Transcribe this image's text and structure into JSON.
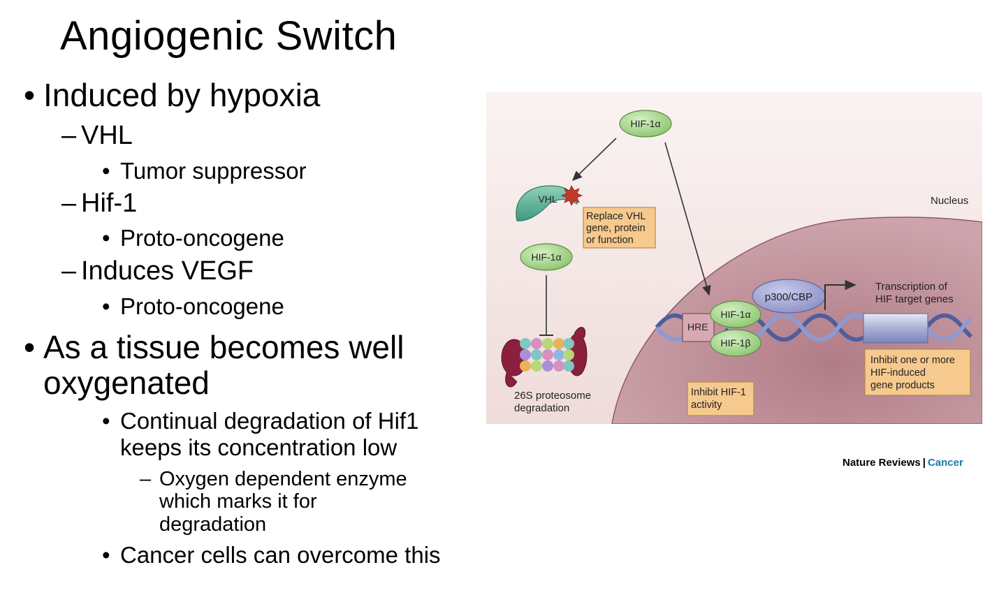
{
  "slide": {
    "title": "Angiogenic Switch"
  },
  "bullets": {
    "b1": "Induced by hypoxia",
    "b1_sub1": "VHL",
    "b1_sub1_item": "Tumor suppressor",
    "b1_sub2": "Hif-1",
    "b1_sub2_item": "Proto-oncogene",
    "b1_sub3": "Induces VEGF",
    "b1_sub3_item": "Proto-oncogene",
    "b2_line1": "As a tissue becomes well",
    "b2_line2": "oxygenated",
    "b2_sub1_line1": "Continual degradation of Hif1",
    "b2_sub1_line2": "keeps its concentration low",
    "b2_sub1_dash_line1": "Oxygen dependent enzyme",
    "b2_sub1_dash_line2": "which marks it for",
    "b2_sub1_dash_line3": "degradation",
    "b2_sub2": "Cancer cells can overcome this"
  },
  "markers": {
    "bullet": "•",
    "dash_long": "–",
    "dash_short": "–"
  },
  "diagram": {
    "hif1a_top": "HIF-1α",
    "vhl": "VHL",
    "replace_vhl_line1": "Replace VHL",
    "replace_vhl_line2": "gene, protein",
    "replace_vhl_line3": "or function",
    "hif1a_left": "HIF-1α",
    "proteasome_line1": "26S proteosome",
    "proteasome_line2": "degradation",
    "nucleus": "Nucleus",
    "p300": "p300/CBP",
    "transcription_line1": "Transcription of",
    "transcription_line2": "HIF target genes",
    "hre": "HRE",
    "hif1a_dna": "HIF-1α",
    "hif1b_dna": "HIF-1β",
    "inhibit_hif_line1": "Inhibit HIF-1",
    "inhibit_hif_line2": "activity",
    "inhibit_genes_line1": "Inhibit one or more",
    "inhibit_genes_line2": "HIF-induced",
    "inhibit_genes_line3": "gene products"
  },
  "credit": {
    "journal": "Nature Reviews",
    "separator": "|",
    "section": "Cancer"
  },
  "colors": {
    "nucleus_fill": "#c69aa3",
    "cytoplasm_fill": "#f4e8e6",
    "orange_box": "#f6c98e",
    "green_oval": "#a9d68f",
    "dna_blue": "#5f6eab",
    "credit_blue": "#1a7aa8"
  }
}
